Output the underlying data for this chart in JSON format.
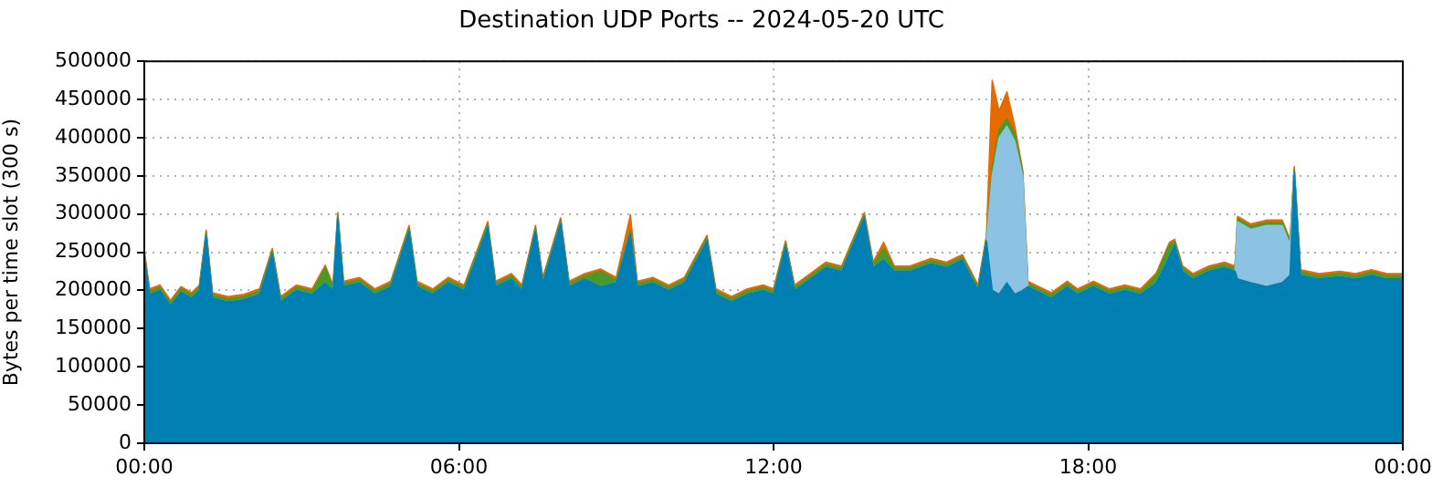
{
  "chart_data": {
    "type": "area",
    "stacked": true,
    "title": "Destination UDP Ports -- 2024-05-20 UTC",
    "ylabel": "Bytes per time slot (300 s)",
    "x": [
      0,
      0.1,
      0.3,
      0.5,
      0.7,
      0.9,
      1.05,
      1.18,
      1.3,
      1.6,
      1.9,
      2.2,
      2.44,
      2.6,
      2.9,
      3.2,
      3.45,
      3.6,
      3.69,
      3.8,
      4.1,
      4.4,
      4.7,
      5.05,
      5.2,
      5.5,
      5.8,
      6.1,
      6.55,
      6.7,
      7.0,
      7.2,
      7.46,
      7.6,
      7.94,
      8.1,
      8.4,
      8.7,
      9.0,
      9.27,
      9.4,
      9.7,
      10.0,
      10.3,
      10.73,
      10.9,
      11.2,
      11.5,
      11.8,
      12.0,
      12.23,
      12.4,
      12.7,
      13.0,
      13.3,
      13.73,
      13.9,
      14.1,
      14.3,
      14.6,
      15.0,
      15.3,
      15.6,
      15.9,
      16.06,
      16.17,
      16.3,
      16.45,
      16.6,
      16.75,
      16.85,
      17.0,
      17.3,
      17.6,
      17.8,
      18.1,
      18.4,
      18.7,
      19.0,
      19.3,
      19.55,
      19.65,
      19.8,
      20.0,
      20.3,
      20.6,
      20.8,
      20.85,
      21.1,
      21.4,
      21.7,
      21.85,
      21.93,
      22.05,
      22.4,
      22.8,
      23.1,
      23.4,
      23.7,
      24.0
    ],
    "series": [
      {
        "color": "#0080b2",
        "values": [
          245000,
          195000,
          200000,
          180000,
          198000,
          190000,
          200000,
          272000,
          190000,
          185000,
          188000,
          195000,
          248000,
          185000,
          200000,
          195000,
          210000,
          200000,
          295000,
          205000,
          210000,
          195000,
          205000,
          278000,
          205000,
          195000,
          210000,
          200000,
          283000,
          205000,
          215000,
          200000,
          278000,
          210000,
          288000,
          205000,
          215000,
          205000,
          210000,
          275000,
          205000,
          210000,
          200000,
          210000,
          265000,
          195000,
          185000,
          195000,
          200000,
          195000,
          258000,
          200000,
          215000,
          230000,
          225000,
          295000,
          230000,
          240000,
          225000,
          225000,
          235000,
          230000,
          240000,
          200000,
          265000,
          200000,
          195000,
          210000,
          195000,
          200000,
          205000,
          200000,
          190000,
          205000,
          195000,
          205000,
          195000,
          200000,
          195000,
          210000,
          245000,
          260000,
          225000,
          215000,
          225000,
          230000,
          225000,
          215000,
          210000,
          205000,
          210000,
          220000,
          355000,
          220000,
          215000,
          218000,
          215000,
          220000,
          215000,
          215000
        ]
      },
      {
        "color": "#8cc2e2",
        "values": [
          0,
          0,
          0,
          0,
          0,
          0,
          0,
          0,
          0,
          0,
          0,
          0,
          0,
          0,
          0,
          0,
          0,
          0,
          0,
          0,
          0,
          0,
          0,
          0,
          0,
          0,
          0,
          0,
          0,
          0,
          0,
          0,
          0,
          0,
          0,
          0,
          0,
          0,
          0,
          0,
          0,
          0,
          0,
          0,
          0,
          0,
          0,
          0,
          0,
          0,
          0,
          0,
          0,
          0,
          0,
          0,
          0,
          0,
          0,
          0,
          0,
          0,
          0,
          0,
          0,
          150000,
          205000,
          205000,
          200000,
          150000,
          0,
          0,
          0,
          0,
          0,
          0,
          0,
          0,
          0,
          0,
          0,
          0,
          0,
          0,
          0,
          0,
          0,
          75000,
          70000,
          80000,
          75000,
          40000,
          0,
          0,
          0,
          0,
          0,
          0,
          0,
          0
        ]
      },
      {
        "color": "#4a9a2a",
        "values": [
          4000,
          4000,
          4000,
          4000,
          4000,
          4000,
          4000,
          4000,
          4000,
          4000,
          4000,
          4000,
          4000,
          4000,
          4000,
          4000,
          20000,
          4000,
          4000,
          4000,
          4000,
          4000,
          4000,
          4000,
          4000,
          4000,
          4000,
          4000,
          4000,
          4000,
          4000,
          4000,
          4000,
          4000,
          4000,
          4000,
          4000,
          20000,
          4000,
          4000,
          4000,
          4000,
          4000,
          4000,
          4000,
          4000,
          4000,
          4000,
          4000,
          4000,
          4000,
          4000,
          4000,
          4000,
          4000,
          4000,
          4000,
          15000,
          4000,
          4000,
          4000,
          4000,
          4000,
          4000,
          4000,
          10000,
          10000,
          10000,
          10000,
          5000,
          4000,
          4000,
          4000,
          4000,
          4000,
          4000,
          4000,
          4000,
          4000,
          10000,
          15000,
          4000,
          4000,
          4000,
          4000,
          4000,
          4000,
          4000,
          4000,
          4000,
          4000,
          4000,
          4000,
          4000,
          4000,
          4000,
          4000,
          4000,
          4000,
          4000
        ]
      },
      {
        "color": "#e56a00",
        "values": [
          3000,
          3000,
          3000,
          3000,
          3000,
          3000,
          3000,
          3000,
          3000,
          3000,
          3000,
          3000,
          3000,
          3000,
          3000,
          3000,
          3000,
          3000,
          3000,
          3000,
          3000,
          3000,
          3000,
          3000,
          3000,
          3000,
          3000,
          3000,
          3000,
          3000,
          3000,
          3000,
          3000,
          3000,
          3000,
          3000,
          3000,
          3000,
          3000,
          20000,
          3000,
          3000,
          3000,
          3000,
          3000,
          3000,
          3000,
          3000,
          3000,
          3000,
          3000,
          3000,
          3000,
          3000,
          3000,
          3000,
          3000,
          8000,
          3000,
          3000,
          3000,
          3000,
          3000,
          3000,
          3000,
          115000,
          25000,
          35000,
          10000,
          3000,
          3000,
          3000,
          3000,
          3000,
          3000,
          3000,
          3000,
          3000,
          3000,
          3000,
          3000,
          3000,
          3000,
          3000,
          3000,
          3000,
          3000,
          3000,
          3000,
          3000,
          3000,
          3000,
          3000,
          3000,
          3000,
          3000,
          3000,
          3000,
          3000,
          3000
        ]
      }
    ],
    "xlim": [
      0,
      24
    ],
    "xticks": [
      {
        "value": 0,
        "label": "00:00"
      },
      {
        "value": 6,
        "label": "06:00"
      },
      {
        "value": 12,
        "label": "12:00"
      },
      {
        "value": 18,
        "label": "18:00"
      },
      {
        "value": 24,
        "label": "00:00"
      }
    ],
    "ylim": [
      0,
      500000
    ],
    "yticks": [
      0,
      50000,
      100000,
      150000,
      200000,
      250000,
      300000,
      350000,
      400000,
      450000,
      500000
    ],
    "grid": true,
    "legend": false
  }
}
